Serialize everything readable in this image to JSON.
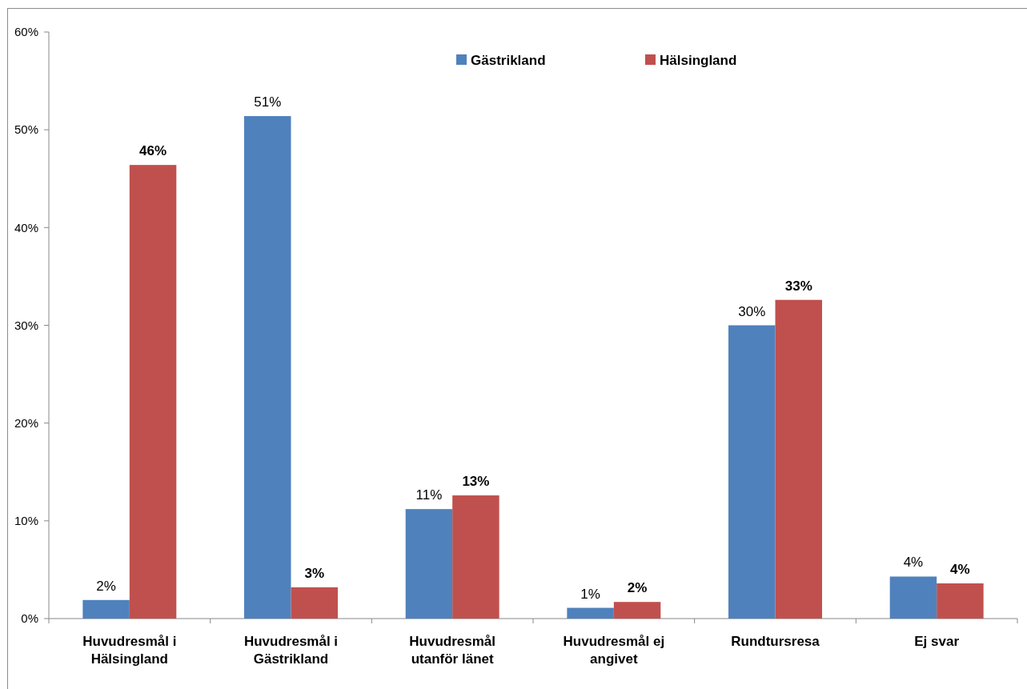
{
  "chart_data": {
    "type": "bar",
    "categories": [
      "Huvudresmål i Hälsingland",
      "Huvudresmål i Gästrikland",
      "Huvudresmål utanför länet",
      "Huvudresmål ej angivet",
      "Rundtursresa",
      "Ej svar"
    ],
    "series": [
      {
        "name": "Gästrikland",
        "color": "#4f81bd",
        "values": [
          1.9,
          51.4,
          11.2,
          1.1,
          30.0,
          4.3
        ],
        "value_labels": [
          "2%",
          "51%",
          "11%",
          "1%",
          "30%",
          "4%"
        ]
      },
      {
        "name": "Hälsingland",
        "color": "#c0504d",
        "values": [
          46.4,
          3.2,
          12.6,
          1.7,
          32.6,
          3.6
        ],
        "value_labels": [
          "46%",
          "3%",
          "13%",
          "2%",
          "33%",
          "4%"
        ]
      }
    ],
    "ylim": [
      0,
      60
    ],
    "yticks": [
      {
        "value": 0,
        "label": "0%"
      },
      {
        "value": 10,
        "label": "10%"
      },
      {
        "value": 20,
        "label": "20%"
      },
      {
        "value": 30,
        "label": "30%"
      },
      {
        "value": 40,
        "label": "40%"
      },
      {
        "value": 50,
        "label": "50%"
      },
      {
        "value": 60,
        "label": "60%"
      }
    ],
    "legend": "top"
  }
}
